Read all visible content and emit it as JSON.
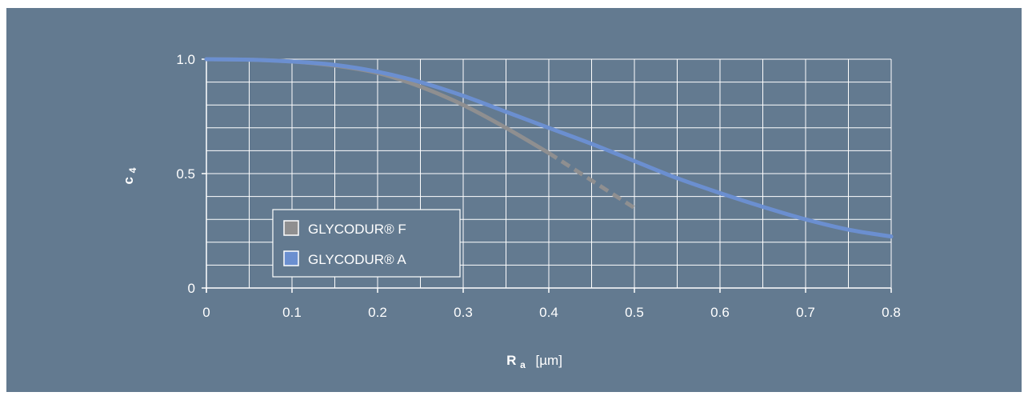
{
  "chart_data": {
    "type": "line",
    "xlabel_main": "R",
    "xlabel_sub": "a",
    "xlabel_unit": "[µm]",
    "ylabel_main": "c",
    "ylabel_sub": "4",
    "xlim": [
      0,
      0.8
    ],
    "ylim": [
      0,
      1.0
    ],
    "x_ticks": [
      0,
      0.1,
      0.2,
      0.3,
      0.4,
      0.5,
      0.6,
      0.7,
      0.8
    ],
    "x_tick_labels": [
      "0",
      "0.1",
      "0.2",
      "0.3",
      "0.4",
      "0.5",
      "0.6",
      "0.7",
      "0.8"
    ],
    "y_ticks": [
      0,
      0.5,
      1.0
    ],
    "y_tick_labels": [
      "0",
      "0.5",
      "1.0"
    ],
    "grid": true,
    "legend_position": "lower-left",
    "series": [
      {
        "name": "GLYCODUR® F",
        "color": "#8f8f90",
        "x": [
          0,
          0.05,
          0.1,
          0.15,
          0.2,
          0.25,
          0.3,
          0.35,
          0.4
        ],
        "y": [
          1.0,
          0.998,
          0.99,
          0.972,
          0.94,
          0.88,
          0.8,
          0.7,
          0.59
        ],
        "dashed_x": [
          0.4,
          0.45,
          0.5
        ],
        "dashed_y": [
          0.59,
          0.47,
          0.35
        ]
      },
      {
        "name": "GLYCODUR® A",
        "color": "#6b8fd0",
        "x": [
          0,
          0.05,
          0.1,
          0.15,
          0.2,
          0.25,
          0.3,
          0.35,
          0.4,
          0.45,
          0.5,
          0.55,
          0.6,
          0.65,
          0.7,
          0.75,
          0.8
        ],
        "y": [
          1.0,
          0.998,
          0.99,
          0.975,
          0.945,
          0.9,
          0.84,
          0.77,
          0.7,
          0.63,
          0.555,
          0.48,
          0.415,
          0.355,
          0.3,
          0.255,
          0.225
        ]
      }
    ]
  }
}
